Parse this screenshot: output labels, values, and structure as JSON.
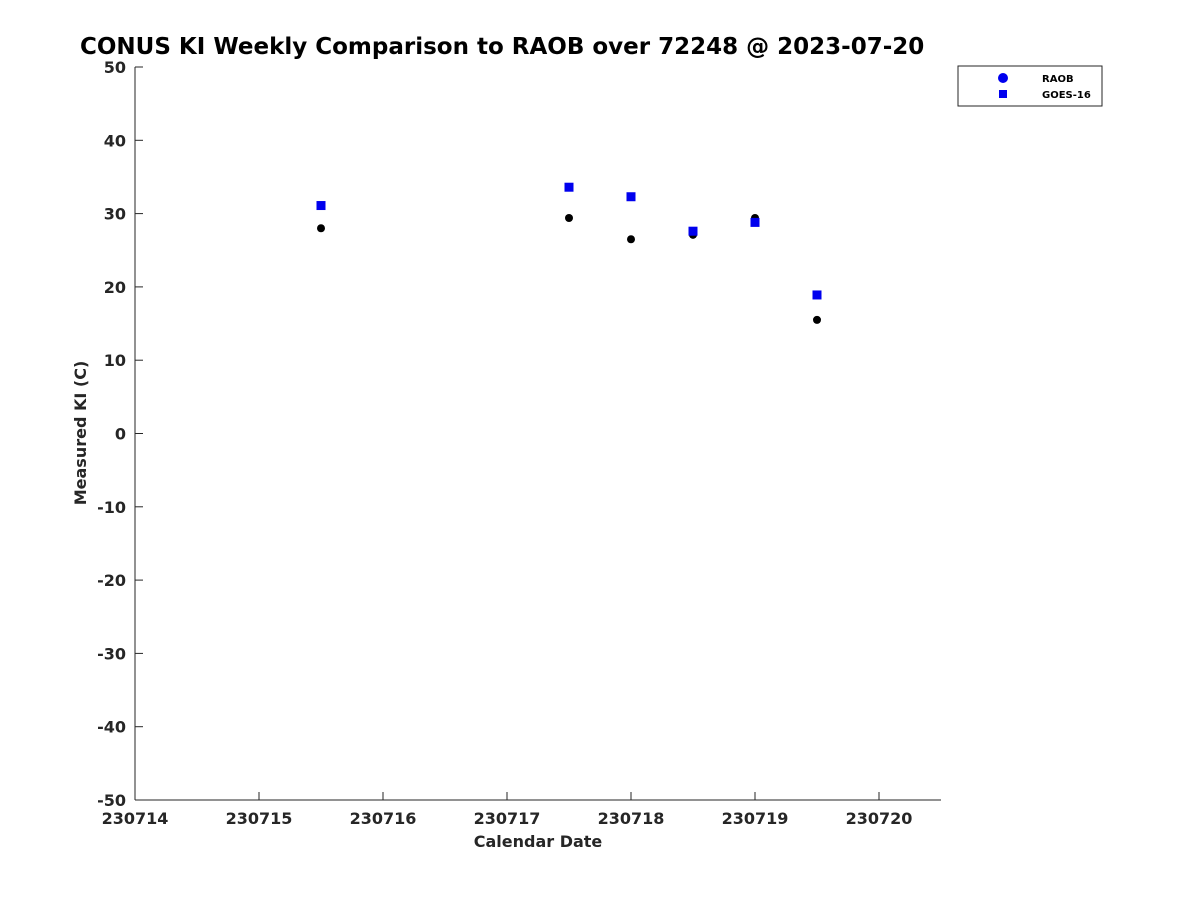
{
  "chart_data": {
    "type": "scatter",
    "title": "CONUS KI Weekly Comparison to RAOB over 72248 @ 2023-07-20",
    "xlabel": "Calendar Date",
    "ylabel": "Measured KI (C)",
    "xlim": [
      230714,
      230720.5
    ],
    "ylim": [
      -50,
      50
    ],
    "x_ticks": [
      230714,
      230715,
      230716,
      230717,
      230718,
      230719,
      230720
    ],
    "x_tick_labels": [
      "230714",
      "230715",
      "230716",
      "230717",
      "230718",
      "230719",
      "230720"
    ],
    "y_ticks": [
      -50,
      -40,
      -30,
      -20,
      -10,
      0,
      10,
      20,
      30,
      40,
      50
    ],
    "y_tick_labels": [
      "-50",
      "-40",
      "-30",
      "-20",
      "-10",
      "0",
      "10",
      "20",
      "30",
      "40",
      "50"
    ],
    "grid": false,
    "legend_position": "top-right",
    "series": [
      {
        "name": "RAOB",
        "marker": "circle",
        "color": "#000000",
        "legend_color": "#0000ee",
        "x": [
          230715.5,
          230717.5,
          230718.0,
          230718.5,
          230719.0,
          230719.5
        ],
        "y": [
          28.0,
          29.4,
          26.5,
          27.1,
          29.4,
          15.5
        ]
      },
      {
        "name": "GOES-16",
        "marker": "square",
        "color": "#0000ee",
        "legend_color": "#0000ee",
        "x": [
          230715.5,
          230717.5,
          230718.0,
          230718.5,
          230719.0,
          230719.5
        ],
        "y": [
          31.1,
          33.6,
          32.3,
          27.6,
          28.8,
          18.9
        ]
      }
    ]
  }
}
